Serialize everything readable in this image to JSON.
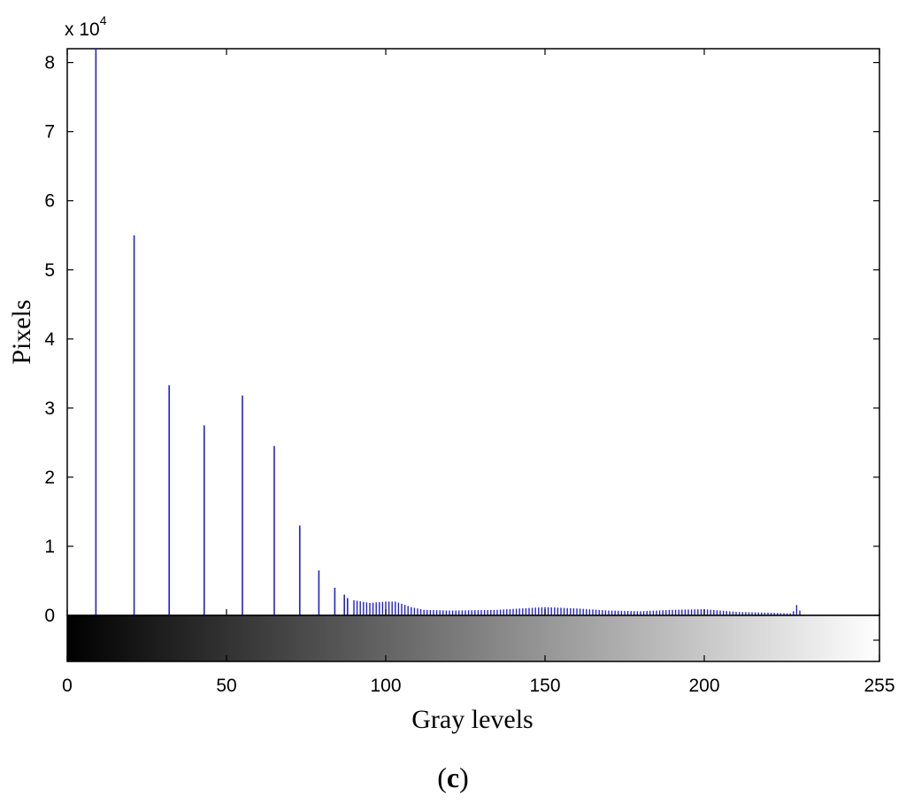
{
  "chart_data": {
    "type": "bar",
    "xlabel": "Gray levels",
    "ylabel": "Pixels",
    "y_multiplier_text": "x 10",
    "y_multiplier_exponent": "4",
    "panel_label": "(c)",
    "panel_letter": "c",
    "xlim": [
      0,
      255
    ],
    "ylim": [
      0,
      8.2
    ],
    "colorbar_ylim": [
      -0.7,
      0
    ],
    "x_ticks": [
      0,
      50,
      100,
      150,
      200,
      255
    ],
    "y_ticks": [
      0,
      1,
      2,
      3,
      4,
      5,
      6,
      7,
      8
    ],
    "colorbar_ticks": [
      0
    ],
    "grid": false,
    "series_color": "#1f1fdd",
    "colorbar_gradient": [
      "#000000",
      "#ffffff"
    ],
    "major_peaks": {
      "x": [
        9,
        21,
        32,
        43,
        55,
        65,
        73,
        79,
        84,
        87,
        88
      ],
      "y": [
        8.2,
        5.5,
        3.33,
        2.75,
        3.18,
        2.45,
        1.3,
        0.65,
        0.4,
        0.3,
        0.25
      ]
    },
    "dense_region": {
      "x_start": 90,
      "x_end": 230,
      "step": 1,
      "profile_x": [
        90,
        95,
        100,
        103,
        108,
        112,
        120,
        135,
        150,
        160,
        170,
        180,
        190,
        200,
        210,
        220,
        227,
        228,
        229,
        230
      ],
      "profile_y": [
        0.22,
        0.18,
        0.2,
        0.2,
        0.12,
        0.08,
        0.07,
        0.08,
        0.12,
        0.1,
        0.07,
        0.06,
        0.08,
        0.09,
        0.05,
        0.04,
        0.03,
        0.06,
        0.15,
        0.07
      ]
    }
  }
}
